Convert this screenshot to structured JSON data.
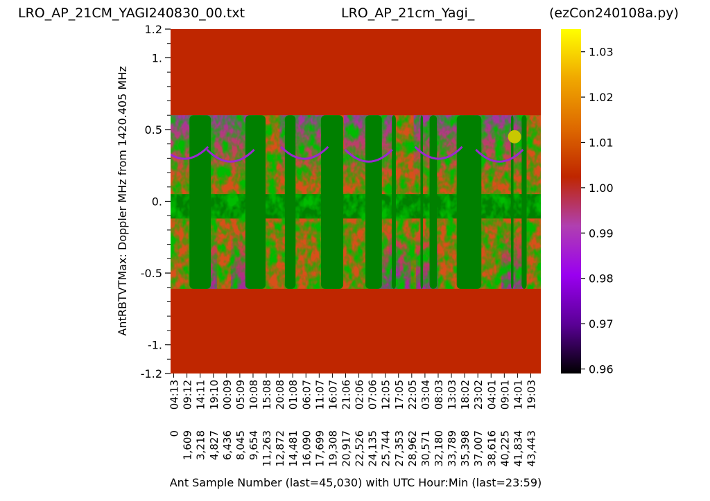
{
  "chart_data": {
    "type": "heatmap",
    "title_left": "LRO_AP_21CM_YAGI240830_00.txt",
    "title_center": "LRO_AP_21cm_Yagi_",
    "title_right": "(ezCon240108a.py)",
    "ylabel": "AntRBTVTMax:  Doppler MHz from 1420.405 MHz",
    "xlabel": "Ant Sample Number (last=45,030) with UTC Hour:Min (last=23:59)",
    "y_range": [
      -1.2,
      1.2
    ],
    "y_ticks": [
      {
        "value": 1.2,
        "label": "1.2"
      },
      {
        "value": 1.0,
        "label": "1."
      },
      {
        "value": 0.5,
        "label": "0.5"
      },
      {
        "value": 0.0,
        "label": "0."
      },
      {
        "value": -0.5,
        "label": "-0.5"
      },
      {
        "value": -1.0,
        "label": "-1."
      },
      {
        "value": -1.2,
        "label": "-1.2"
      }
    ],
    "x_range": [
      0,
      45030
    ],
    "x_ticks": [
      {
        "sample": "0",
        "utc": "04:13"
      },
      {
        "sample": "1,609",
        "utc": "09:12"
      },
      {
        "sample": "3,218",
        "utc": "14:11"
      },
      {
        "sample": "4,827",
        "utc": "19:10"
      },
      {
        "sample": "6,436",
        "utc": "00:09"
      },
      {
        "sample": "8,045",
        "utc": "05:09"
      },
      {
        "sample": "9,654",
        "utc": "10:08"
      },
      {
        "sample": "11,263",
        "utc": "15:08"
      },
      {
        "sample": "12,872",
        "utc": "20:08"
      },
      {
        "sample": "14,481",
        "utc": "01:08"
      },
      {
        "sample": "16,090",
        "utc": "06:07"
      },
      {
        "sample": "17,699",
        "utc": "11:07"
      },
      {
        "sample": "19,308",
        "utc": "16:07"
      },
      {
        "sample": "20,917",
        "utc": "21:06"
      },
      {
        "sample": "22,526",
        "utc": "02:06"
      },
      {
        "sample": "24,135",
        "utc": "07:06"
      },
      {
        "sample": "25,744",
        "utc": "12:05"
      },
      {
        "sample": "27,353",
        "utc": "17:05"
      },
      {
        "sample": "28,962",
        "utc": "22:05"
      },
      {
        "sample": "30,571",
        "utc": "03:04"
      },
      {
        "sample": "32,180",
        "utc": "08:03"
      },
      {
        "sample": "33,789",
        "utc": "13:03"
      },
      {
        "sample": "35,398",
        "utc": "18:02"
      },
      {
        "sample": "37,007",
        "utc": "23:02"
      },
      {
        "sample": "38,616",
        "utc": "04:01"
      },
      {
        "sample": "40,225",
        "utc": "09:01"
      },
      {
        "sample": "41,834",
        "utc": "14:01"
      },
      {
        "sample": "43,443",
        "utc": "19:03"
      }
    ],
    "colorbar": {
      "range": [
        0.959,
        1.035
      ],
      "ticks": [
        "1.03",
        "1.02",
        "1.01",
        "1.00",
        "0.99",
        "0.98",
        "0.97",
        "0.96"
      ],
      "tick_values": [
        1.03,
        1.02,
        1.01,
        1.0,
        0.99,
        0.98,
        0.97,
        0.96
      ],
      "colormap": "gnuplot",
      "stops": [
        "#000000",
        "#5a0096",
        "#9a00f0",
        "#b040b0",
        "#bf2600",
        "#de6a00",
        "#f0a800",
        "#ffff00"
      ]
    },
    "colors": {
      "background_ratio_1": "#bf2600",
      "green_overlay": "#008000",
      "marker": "#c8c800"
    },
    "band_y_range": [
      -0.61,
      0.6
    ],
    "green_columns_sample": [
      [
        2300,
        4900
      ],
      [
        9100,
        11550
      ],
      [
        13900,
        15200
      ],
      [
        18300,
        21000
      ],
      [
        23700,
        25700
      ],
      [
        26900,
        27400
      ],
      [
        30400,
        30700
      ],
      [
        31500,
        32400
      ],
      [
        34800,
        37800
      ],
      [
        41400,
        41700
      ],
      [
        42700,
        43300
      ]
    ],
    "arcs": [
      {
        "x_center_sample": 1700,
        "y_min": 0.3
      },
      {
        "x_center_sample": 7300,
        "y_min": 0.28
      },
      {
        "x_center_sample": 16300,
        "y_min": 0.3
      },
      {
        "x_center_sample": 24100,
        "y_min": 0.28
      },
      {
        "x_center_sample": 32600,
        "y_min": 0.3
      },
      {
        "x_center_sample": 40000,
        "y_min": 0.28
      }
    ],
    "marker_point": {
      "sample": 41834,
      "doppler": 0.45
    }
  }
}
